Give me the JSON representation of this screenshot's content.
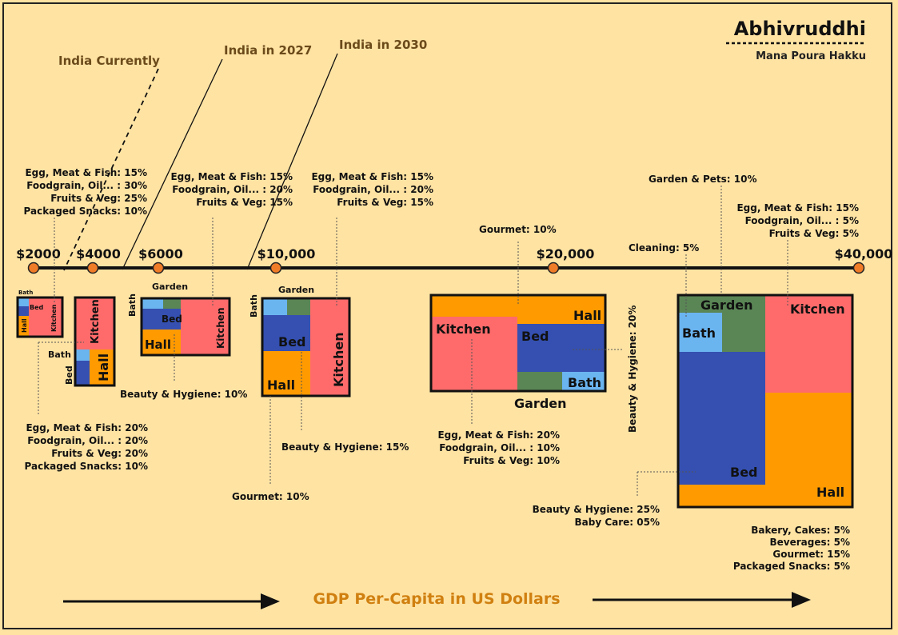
{
  "brand": {
    "title": "Abhivruddhi",
    "subtitle": "Mana Poura Hakku"
  },
  "milestones": [
    {
      "label": "India Currently"
    },
    {
      "label": "India in 2027"
    },
    {
      "label": "India in 2030"
    }
  ],
  "axis": {
    "ticks": [
      "$2000",
      "$4000",
      "$6000",
      "$10,000",
      "$20,000",
      "$40,000"
    ],
    "caption": "GDP Per-Capita in US Dollars"
  },
  "rooms": {
    "kitchen": "Kitchen",
    "hall": "Hall",
    "bed": "Bed",
    "bath": "Bath",
    "garden": "Garden"
  },
  "colors": {
    "background": "#ffe3a3",
    "kitchen": "#ff6b6b",
    "hall": "#ff9a00",
    "bed": "#3550b0",
    "bath": "#6ab4f0",
    "garden": "#5a8555",
    "timeline_dot": "#f07c28",
    "caption": "#d08010"
  },
  "annotations": {
    "h2000_kitchen": [
      "Egg, Meat & Fish: 15%",
      "Foodgrain, Oil... : 30%",
      "Fruits & Veg: 25%",
      "Packaged Snacks: 10%"
    ],
    "h4000_kitchen": [
      "Egg, Meat & Fish: 20%",
      "Foodgrain, Oil... : 20%",
      "Fruits & Veg: 20%",
      "Packaged Snacks: 10%"
    ],
    "h6000_kitchen": [
      "Egg, Meat & Fish: 15%",
      "Foodgrain, Oil... : 20%",
      "Fruits & Veg: 15%"
    ],
    "h6000_beauty": [
      "Beauty & Hygiene: 10%"
    ],
    "h10000_kitchen": [
      "Egg, Meat & Fish: 15%",
      "Foodgrain, Oil... : 20%",
      "Fruits & Veg: 15%"
    ],
    "h10000_beauty": [
      "Beauty & Hygiene: 15%"
    ],
    "h10000_gourmet": [
      "Gourmet: 10%"
    ],
    "h20000_gourmet": [
      "Gourmet: 10%"
    ],
    "h20000_kitchen": [
      "Egg, Meat & Fish: 20%",
      "Foodgrain, Oil... : 10%",
      "Fruits & Veg: 10%"
    ],
    "h20000_beauty": [
      "Beauty & Hygiene: 20%"
    ],
    "h40000_garden": [
      "Garden & Pets: 10%"
    ],
    "h40000_cleaning": [
      "Cleaning: 5%"
    ],
    "h40000_kitchen": [
      "Egg, Meat & Fish: 15%",
      "Foodgrain, Oil... : 5%",
      "Fruits & Veg: 5%"
    ],
    "h40000_beauty": [
      "Beauty & Hygiene: 25%",
      "Baby Care: 05%"
    ],
    "h40000_hall": [
      "Bakery, Cakes: 5%",
      "Beverages: 5%",
      "Gourmet: 15%",
      "Packaged Snacks: 5%"
    ]
  }
}
